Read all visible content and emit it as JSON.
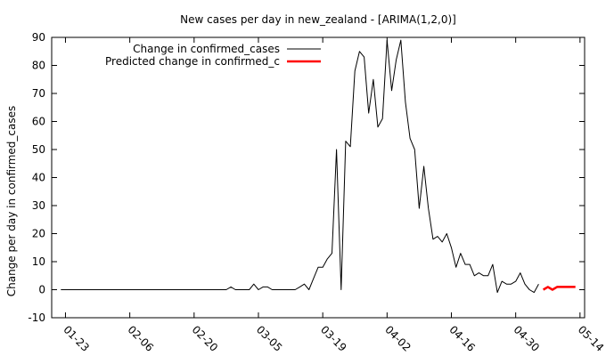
{
  "chart_data": {
    "type": "line",
    "title": "New cases per day in new_zealand -  [ARIMA(1,2,0)]",
    "xlabel": "",
    "ylabel": "Change per day in confirmed_cases",
    "xlim": [
      "2020-01-20",
      "2020-05-15"
    ],
    "ylim": [
      -10,
      90
    ],
    "y_ticks": [
      -10,
      0,
      10,
      20,
      30,
      40,
      50,
      60,
      70,
      80,
      90
    ],
    "x_ticks": [
      {
        "date": "2020-01-23",
        "label": "01-23"
      },
      {
        "date": "2020-02-06",
        "label": "02-06"
      },
      {
        "date": "2020-02-20",
        "label": "02-20"
      },
      {
        "date": "2020-03-05",
        "label": "03-05"
      },
      {
        "date": "2020-03-19",
        "label": "03-19"
      },
      {
        "date": "2020-04-02",
        "label": "04-02"
      },
      {
        "date": "2020-04-16",
        "label": "04-16"
      },
      {
        "date": "2020-04-30",
        "label": "04-30"
      },
      {
        "date": "2020-05-14",
        "label": "05-14"
      }
    ],
    "grid": false,
    "legend_position": "top-left",
    "series": [
      {
        "name": "Change in confirmed_cases",
        "color": "#000000",
        "points": [
          [
            "2020-01-22",
            0
          ],
          [
            "2020-02-27",
            0
          ],
          [
            "2020-02-28",
            1
          ],
          [
            "2020-02-29",
            0
          ],
          [
            "2020-03-03",
            0
          ],
          [
            "2020-03-04",
            2
          ],
          [
            "2020-03-05",
            0
          ],
          [
            "2020-03-06",
            1
          ],
          [
            "2020-03-07",
            1
          ],
          [
            "2020-03-08",
            0
          ],
          [
            "2020-03-13",
            0
          ],
          [
            "2020-03-14",
            1
          ],
          [
            "2020-03-15",
            2
          ],
          [
            "2020-03-16",
            0
          ],
          [
            "2020-03-17",
            4
          ],
          [
            "2020-03-18",
            8
          ],
          [
            "2020-03-19",
            8
          ],
          [
            "2020-03-20",
            11
          ],
          [
            "2020-03-21",
            13
          ],
          [
            "2020-03-22",
            50
          ],
          [
            "2020-03-23",
            0
          ],
          [
            "2020-03-24",
            53
          ],
          [
            "2020-03-25",
            51
          ],
          [
            "2020-03-26",
            78
          ],
          [
            "2020-03-27",
            85
          ],
          [
            "2020-03-28",
            83
          ],
          [
            "2020-03-29",
            63
          ],
          [
            "2020-03-30",
            75
          ],
          [
            "2020-03-31",
            58
          ],
          [
            "2020-04-01",
            61
          ],
          [
            "2020-04-02",
            89
          ],
          [
            "2020-04-03",
            71
          ],
          [
            "2020-04-04",
            82
          ],
          [
            "2020-04-05",
            89
          ],
          [
            "2020-04-06",
            67
          ],
          [
            "2020-04-07",
            54
          ],
          [
            "2020-04-08",
            50
          ],
          [
            "2020-04-09",
            29
          ],
          [
            "2020-04-10",
            44
          ],
          [
            "2020-04-11",
            29
          ],
          [
            "2020-04-12",
            18
          ],
          [
            "2020-04-13",
            19
          ],
          [
            "2020-04-14",
            17
          ],
          [
            "2020-04-15",
            20
          ],
          [
            "2020-04-16",
            15
          ],
          [
            "2020-04-17",
            8
          ],
          [
            "2020-04-18",
            13
          ],
          [
            "2020-04-19",
            9
          ],
          [
            "2020-04-20",
            9
          ],
          [
            "2020-04-21",
            5
          ],
          [
            "2020-04-22",
            6
          ],
          [
            "2020-04-23",
            5
          ],
          [
            "2020-04-24",
            5
          ],
          [
            "2020-04-25",
            9
          ],
          [
            "2020-04-26",
            -1
          ],
          [
            "2020-04-27",
            3
          ],
          [
            "2020-04-28",
            2
          ],
          [
            "2020-04-29",
            2
          ],
          [
            "2020-04-30",
            3
          ],
          [
            "2020-05-01",
            6
          ],
          [
            "2020-05-02",
            2
          ],
          [
            "2020-05-03",
            0
          ],
          [
            "2020-05-04",
            -1
          ],
          [
            "2020-05-05",
            2
          ]
        ]
      },
      {
        "name": "Predicted change in confirmed_c",
        "color": "#ff0000",
        "points": [
          [
            "2020-05-06",
            0
          ],
          [
            "2020-05-07",
            1
          ],
          [
            "2020-05-08",
            0
          ],
          [
            "2020-05-09",
            1
          ],
          [
            "2020-05-10",
            1
          ],
          [
            "2020-05-11",
            1
          ],
          [
            "2020-05-12",
            1
          ],
          [
            "2020-05-13",
            1
          ]
        ]
      }
    ]
  }
}
